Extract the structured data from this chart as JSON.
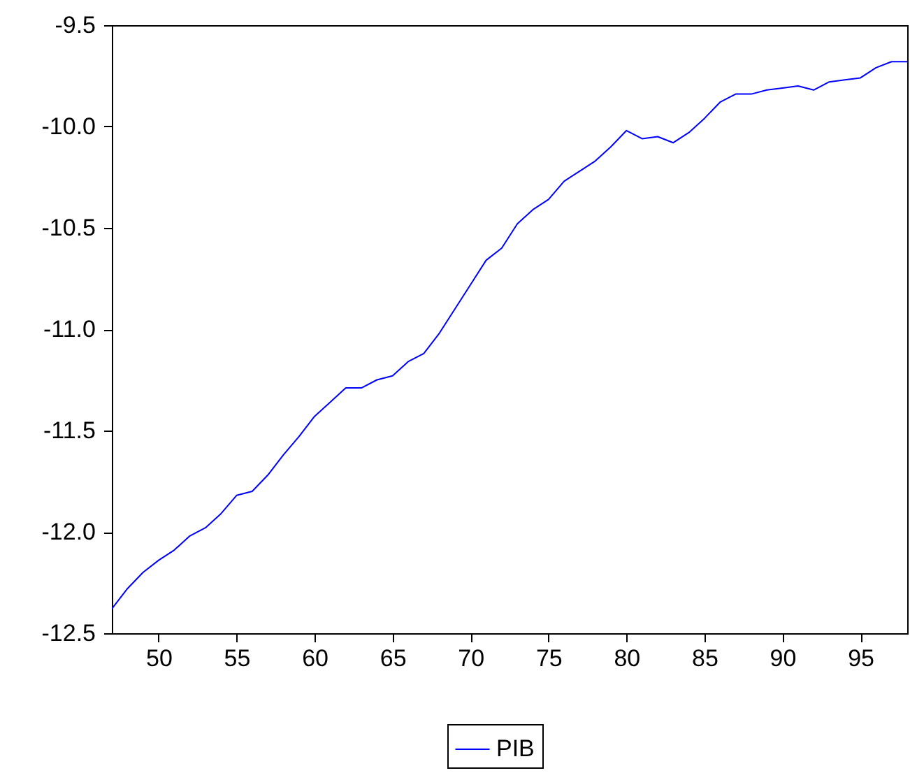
{
  "chart_data": {
    "type": "line",
    "x": [
      47,
      48,
      49,
      50,
      51,
      52,
      53,
      54,
      55,
      56,
      57,
      58,
      59,
      60,
      61,
      62,
      63,
      64,
      65,
      66,
      67,
      68,
      69,
      70,
      71,
      72,
      73,
      74,
      75,
      76,
      77,
      78,
      79,
      80,
      81,
      82,
      83,
      84,
      85,
      86,
      87,
      88,
      89,
      90,
      91,
      92,
      93,
      94,
      95,
      96,
      97,
      98
    ],
    "series": [
      {
        "name": "PIB",
        "color": "#0000ff",
        "values": [
          -12.38,
          -12.28,
          -12.2,
          -12.14,
          -12.09,
          -12.02,
          -11.98,
          -11.91,
          -11.82,
          -11.8,
          -11.72,
          -11.62,
          -11.53,
          -11.43,
          -11.36,
          -11.29,
          -11.29,
          -11.25,
          -11.23,
          -11.16,
          -11.12,
          -11.02,
          -10.9,
          -10.78,
          -10.66,
          -10.6,
          -10.48,
          -10.41,
          -10.36,
          -10.27,
          -10.22,
          -10.17,
          -10.1,
          -10.02,
          -10.06,
          -10.05,
          -10.08,
          -10.03,
          -9.96,
          -9.88,
          -9.84,
          -9.84,
          -9.82,
          -9.81,
          -9.8,
          -9.82,
          -9.78,
          -9.77,
          -9.76,
          -9.71,
          -9.68,
          -9.68
        ]
      }
    ],
    "xlim": [
      47,
      98
    ],
    "xticks": [
      50,
      55,
      60,
      65,
      70,
      75,
      80,
      85,
      90,
      95
    ],
    "ylim": [
      -12.5,
      -9.5
    ],
    "yticks": [
      {
        "value": -12.5,
        "label": "-12.5"
      },
      {
        "value": -12,
        "label": "-12.0"
      },
      {
        "value": -11.5,
        "label": "-11.5"
      },
      {
        "value": -11,
        "label": "-11.0"
      },
      {
        "value": -10.5,
        "label": "-10.5"
      },
      {
        "value": -10,
        "label": "-10.0"
      },
      {
        "value": -9.5,
        "label": "-9.5"
      }
    ],
    "grid": false,
    "legend": "bottom",
    "line_style": "solid"
  }
}
